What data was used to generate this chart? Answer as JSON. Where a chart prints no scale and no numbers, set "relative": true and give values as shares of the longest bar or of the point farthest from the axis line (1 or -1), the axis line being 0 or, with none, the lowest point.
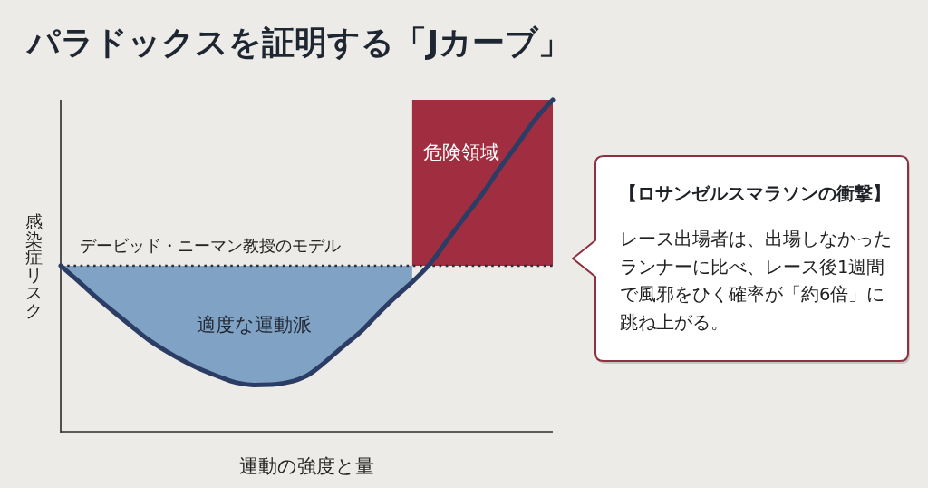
{
  "chart_data": {
    "type": "line",
    "title": "パラドックスを証明する「Jカーブ」",
    "xlabel": "運動の強度と量",
    "ylabel": "感染症リスク",
    "relative": true,
    "categories": [
      null,
      null,
      null,
      null,
      null,
      null,
      null,
      null,
      null,
      null,
      null,
      null,
      null,
      null,
      null,
      null,
      null,
      null,
      null,
      null,
      null,
      null,
      null,
      null,
      null,
      null,
      null,
      null,
      null
    ],
    "series": [
      {
        "color": "#2b3d64",
        "values": [
          0.5,
          0.454,
          0.406,
          0.362,
          0.319,
          0.277,
          0.243,
          0.213,
          0.187,
          0.166,
          0.148,
          0.141,
          0.142,
          0.15,
          0.169,
          0.208,
          0.254,
          0.298,
          0.352,
          0.404,
          0.451,
          0.505,
          0.577,
          0.648,
          0.717,
          0.795,
          0.867,
          0.941,
          1
        ],
        "lower": [
          0.5,
          0.454,
          0.406,
          0.362,
          0.319,
          0.277,
          0.243,
          0.213,
          0.187,
          0.166,
          0.148,
          0.141,
          0.142,
          0.15,
          0.169,
          0.208,
          0.254,
          0.298,
          0.352,
          0.404,
          0.451,
          null,
          null,
          null,
          null,
          null,
          null,
          null,
          null
        ],
        "upper": [
          0.5,
          0.5,
          0.5,
          0.5,
          0.5,
          0.5,
          0.5,
          0.5,
          0.5,
          0.5,
          0.5,
          0.5,
          0.5,
          0.5,
          0.5,
          0.5,
          0.5,
          0.5,
          0.5,
          0.5,
          0.5,
          null,
          null,
          null,
          null,
          null,
          null,
          null,
          null
        ]
      }
    ],
    "ref_lines": [
      {
        "axis": "y",
        "value": 0.5,
        "label": "デービッド・ニーマン教授のモデル",
        "line_style": "dotted",
        "color": "#2a2f3b"
      }
    ],
    "annotations": [
      "適度な運動派",
      "危険領域",
      "【ロサンゼルスマラソンの衝撃】",
      "レース出場者は、出場しなかったランナーに比べ、レース後1週間で風邪をひく確率が「約6倍」に跳ね上がる。"
    ]
  }
}
